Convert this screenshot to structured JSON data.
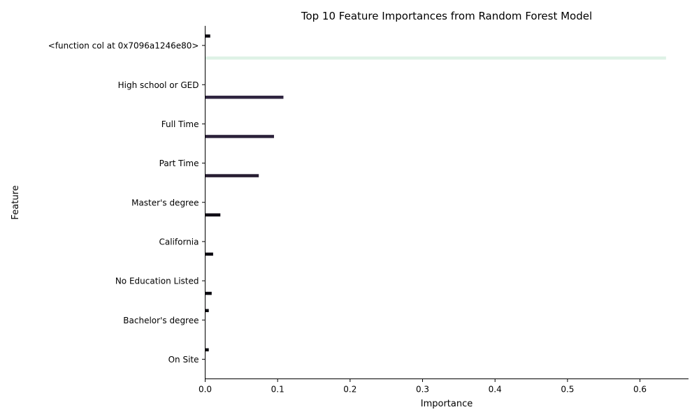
{
  "chart_data": {
    "type": "bar",
    "orientation": "horizontal",
    "title": "Top 10 Feature Importances from Random Forest Model",
    "xlabel": "Importance",
    "ylabel": "Feature",
    "xlim": [
      0,
      0.667
    ],
    "xticks": [
      0.0,
      0.1,
      0.2,
      0.3,
      0.4,
      0.5,
      0.6
    ],
    "xtick_labels": [
      "0.0",
      "0.1",
      "0.2",
      "0.3",
      "0.4",
      "0.5",
      "0.6"
    ],
    "grid": false,
    "categories": [
      "<function col at 0x7096a1246e80>",
      "High school or GED",
      "Full Time",
      "Part Time",
      "Master's degree",
      "California",
      "No Education Listed",
      "Bachelor's degree",
      "On Site"
    ],
    "bars": [
      {
        "category": "<function col at 0x7096a1246e80>",
        "value": 0.007,
        "slot": 0,
        "color": "#0b0a10"
      },
      {
        "category": "<function col at 0x7096a1246e80>",
        "value": 0.636,
        "slot": 1,
        "color": "#def2e6"
      },
      {
        "category": "High school or GED",
        "value": 0.108,
        "slot": 1,
        "color": "#2f2540"
      },
      {
        "category": "Full Time",
        "value": 0.095,
        "slot": 1,
        "color": "#2b2139"
      },
      {
        "category": "Part Time",
        "value": 0.074,
        "slot": 1,
        "color": "#261c31"
      },
      {
        "category": "Master's degree",
        "value": 0.021,
        "slot": 1,
        "color": "#100c16"
      },
      {
        "category": "California",
        "value": 0.011,
        "slot": 1,
        "color": "#0c0a11"
      },
      {
        "category": "No Education Listed",
        "value": 0.009,
        "slot": 1,
        "color": "#0b0a10"
      },
      {
        "category": "Bachelor's degree",
        "value": 0.005,
        "slot": 0,
        "color": "#0a090e"
      },
      {
        "category": "On Site",
        "value": 0.005,
        "slot": 0,
        "color": "#0a090e"
      }
    ]
  }
}
